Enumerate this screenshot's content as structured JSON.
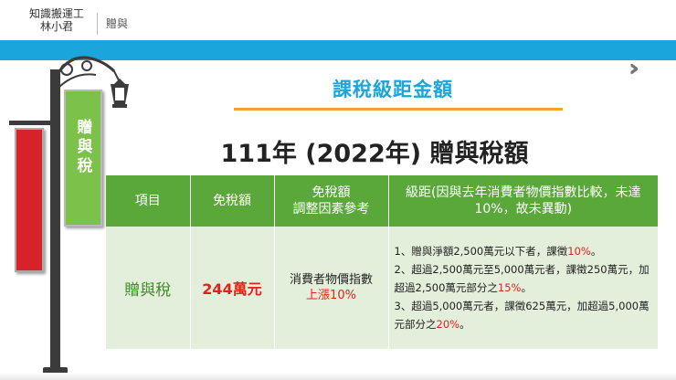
{
  "header": {
    "brand_line1": "知識搬運工",
    "brand_line2": "林小君",
    "section": "贈與"
  },
  "subtitle": "課稅級距金額",
  "title": "111年 (2022年) 贈與稅額",
  "banner": {
    "text": "贈與稅"
  },
  "table": {
    "headers": {
      "item": "項目",
      "exempt": "免稅額",
      "adjust_line1": "免稅額",
      "adjust_line2": "調整因素參考",
      "bracket": "級距(因與去年消費者物價指數比較，未達10%，故未異動)"
    },
    "row": {
      "item": "贈與稅",
      "exempt": "244萬元",
      "adjust_line1": "消費者物價指數",
      "adjust_line2": "上漲10%",
      "rules": [
        {
          "text": "1、贈與淨額2,500萬元以下者，課徵",
          "highlight": "10%",
          "tail": "。"
        },
        {
          "text": "2、超過2,500萬元至5,000萬元者，課徵250萬元，加超過2,500萬元部分之",
          "highlight": "15%",
          "tail": "。"
        },
        {
          "text": "3、超過5,000萬元者，課徵625萬元，加超過5,000萬元部分之",
          "highlight": "20%",
          "tail": "。"
        }
      ]
    }
  },
  "icons": {
    "nav": "double-chevron-right-icon",
    "lamp": "street-lamp-icon"
  },
  "colors": {
    "accent_blue": "#1aa6dd",
    "header_green": "#5ba83a",
    "cell_green": "#e3eedb",
    "highlight_red": "#e0221c",
    "underline_orange": "#f2a23a"
  }
}
